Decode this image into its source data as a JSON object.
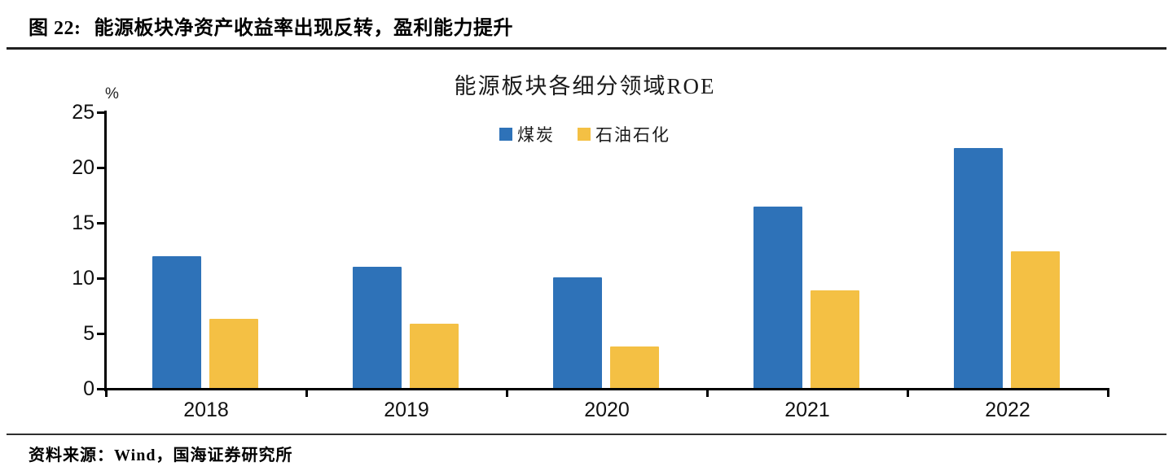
{
  "header": {
    "figure_label": "图 22:",
    "title": "能源板块净资产收益率出现反转，盈利能力提升"
  },
  "chart_data": {
    "type": "bar",
    "title": "能源板块各细分领域ROE",
    "unit_label": "%",
    "categories": [
      "2018",
      "2019",
      "2020",
      "2021",
      "2022"
    ],
    "series": [
      {
        "name": "煤炭",
        "color": "#2E72B8",
        "values": [
          12.0,
          11.0,
          10.1,
          16.5,
          21.8
        ]
      },
      {
        "name": "石油石化",
        "color": "#F4C044",
        "values": [
          6.3,
          5.9,
          3.8,
          8.9,
          12.4
        ]
      }
    ],
    "ylim": [
      0,
      25
    ],
    "yticks": [
      0,
      5,
      10,
      15,
      20,
      25
    ],
    "xlabel": "",
    "ylabel": "%",
    "grid": false,
    "legend_position": "top-center"
  },
  "footer": {
    "source": "资料来源：Wind，国海证券研究所"
  }
}
